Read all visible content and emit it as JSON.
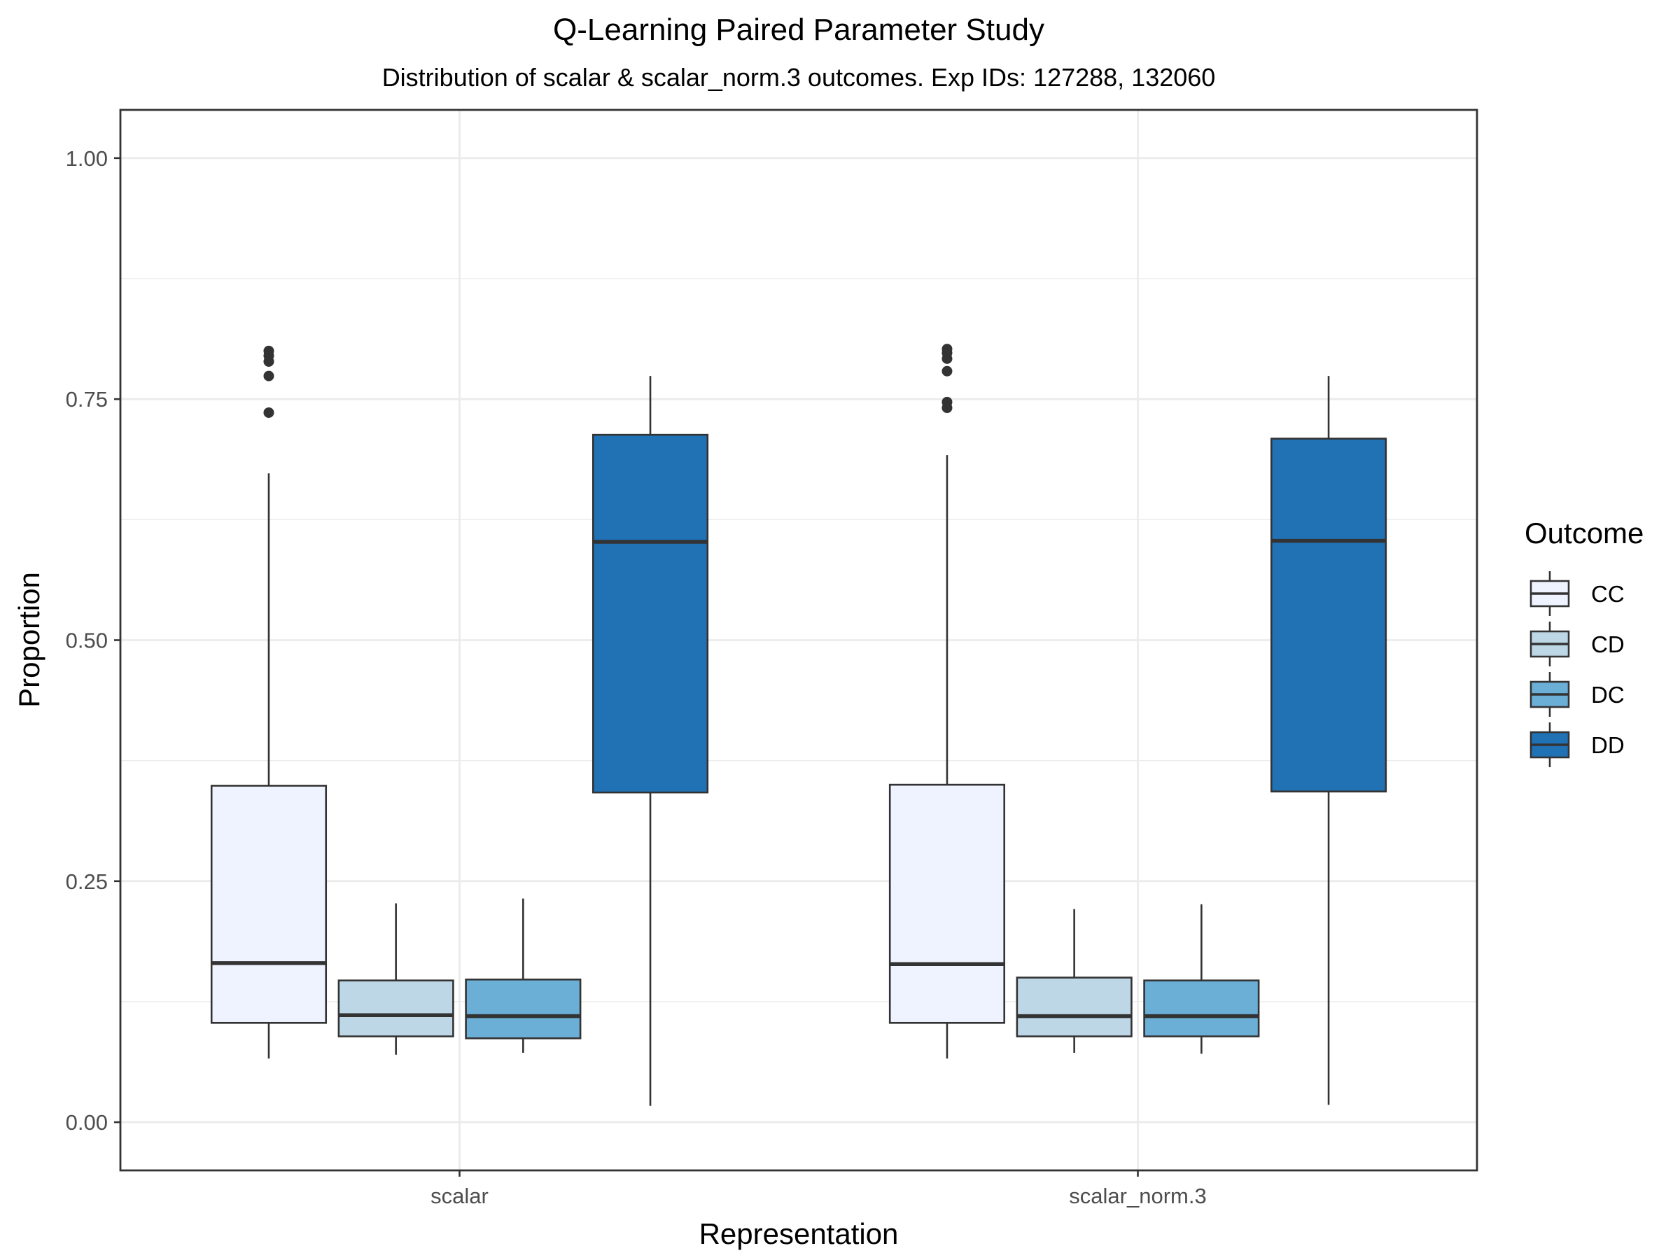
{
  "chart_data": {
    "type": "boxplot",
    "title": "Q-Learning Paired Parameter Study",
    "subtitle": "Distribution of scalar & scalar_norm.3 outcomes. Exp IDs: 127288, 132060",
    "xlabel": "Representation",
    "ylabel": "Proportion",
    "ylim": [
      -0.05,
      1.05
    ],
    "y_ticks": [
      0.0,
      0.25,
      0.5,
      0.75,
      1.0
    ],
    "y_tick_labels": [
      "0.00",
      "0.25",
      "0.50",
      "0.75",
      "1.00"
    ],
    "grid": true,
    "categories": [
      "scalar",
      "scalar_norm.3"
    ],
    "legend": {
      "title": "Outcome",
      "placement": "right",
      "entries": [
        "CC",
        "CD",
        "DC",
        "DD"
      ]
    },
    "series": [
      {
        "name": "CC",
        "color": "#EFF3FF",
        "boxes": [
          {
            "whisker_low": 0.066,
            "q1": 0.103,
            "median": 0.165,
            "q3": 0.349,
            "whisker_high": 0.673,
            "outliers": [
              0.736,
              0.774,
              0.789,
              0.795,
              0.8
            ]
          },
          {
            "whisker_low": 0.066,
            "q1": 0.103,
            "median": 0.164,
            "q3": 0.35,
            "whisker_high": 0.692,
            "outliers": [
              0.741,
              0.747,
              0.779,
              0.792,
              0.798,
              0.802
            ]
          }
        ]
      },
      {
        "name": "CD",
        "color": "#BDD7E7",
        "boxes": [
          {
            "whisker_low": 0.07,
            "q1": 0.089,
            "median": 0.111,
            "q3": 0.147,
            "whisker_high": 0.227,
            "outliers": []
          },
          {
            "whisker_low": 0.072,
            "q1": 0.089,
            "median": 0.11,
            "q3": 0.15,
            "whisker_high": 0.221,
            "outliers": []
          }
        ]
      },
      {
        "name": "DC",
        "color": "#6BAED6",
        "boxes": [
          {
            "whisker_low": 0.072,
            "q1": 0.087,
            "median": 0.11,
            "q3": 0.148,
            "whisker_high": 0.232,
            "outliers": []
          },
          {
            "whisker_low": 0.071,
            "q1": 0.089,
            "median": 0.11,
            "q3": 0.147,
            "whisker_high": 0.226,
            "outliers": []
          }
        ]
      },
      {
        "name": "DD",
        "color": "#2171B5",
        "boxes": [
          {
            "whisker_low": 0.017,
            "q1": 0.342,
            "median": 0.602,
            "q3": 0.713,
            "whisker_high": 0.774,
            "outliers": []
          },
          {
            "whisker_low": 0.018,
            "q1": 0.343,
            "median": 0.603,
            "q3": 0.709,
            "whisker_high": 0.774,
            "outliers": []
          }
        ]
      }
    ]
  }
}
